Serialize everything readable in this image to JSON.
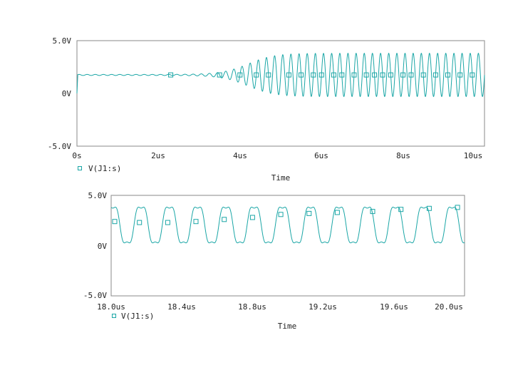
{
  "colors": {
    "trace": "#1aa6a6",
    "axis": "#888888",
    "text": "#222222"
  },
  "chart_data": [
    {
      "type": "line",
      "title": "",
      "xlabel": "Time",
      "ylabel": "",
      "xlim": [
        0,
        10
      ],
      "ylim": [
        -5,
        5
      ],
      "x_ticks": [
        "0s",
        "2us",
        "4us",
        "6us",
        "8us",
        "10us"
      ],
      "y_ticks": [
        "5.0V",
        "0V",
        "-5.0V"
      ],
      "legend": {
        "position": "bottom-left",
        "marker": "square",
        "entries": [
          "V(J1:s)"
        ]
      },
      "series": [
        {
          "name": "V(J1:s)",
          "signal": "growing oscillation",
          "dc_offset": 1.75,
          "period_us": 0.2,
          "start_amplitude": 0.05,
          "final_amplitude": 2.05,
          "growth_center_us": 4.2,
          "markers_x": [
            2.3,
            3.5,
            4.0,
            4.4,
            4.7,
            5.2,
            5.5,
            5.8,
            6.0,
            6.3,
            6.5,
            6.8,
            7.1,
            7.3,
            7.5,
            7.7,
            8.0,
            8.2,
            8.5,
            8.8,
            9.1,
            9.4,
            9.7
          ]
        }
      ]
    },
    {
      "type": "line",
      "title": "",
      "xlabel": "Time",
      "ylabel": "",
      "xlim": [
        18,
        20
      ],
      "ylim": [
        -5,
        5
      ],
      "x_ticks": [
        "18.0us",
        "18.4us",
        "18.8us",
        "19.2us",
        "19.6us",
        "20.0us"
      ],
      "y_ticks": [
        "5.0V",
        "0V",
        "-5.0V"
      ],
      "legend": {
        "position": "bottom-left",
        "marker": "square",
        "entries": [
          "V(J1:s)"
        ]
      },
      "series": [
        {
          "name": "V(J1:s)",
          "signal": "steady oscillation",
          "min": 0.0,
          "max": 4.1,
          "period_us": 0.16,
          "markers": [
            [
              18.02,
              2.4
            ],
            [
              18.16,
              2.3
            ],
            [
              18.32,
              2.3
            ],
            [
              18.48,
              2.4
            ],
            [
              18.64,
              2.6
            ],
            [
              18.8,
              2.8
            ],
            [
              18.96,
              3.1
            ],
            [
              19.12,
              3.2
            ],
            [
              19.28,
              3.3
            ],
            [
              19.48,
              3.4
            ],
            [
              19.64,
              3.6
            ],
            [
              19.8,
              3.7
            ],
            [
              19.96,
              3.8
            ]
          ]
        }
      ]
    }
  ]
}
